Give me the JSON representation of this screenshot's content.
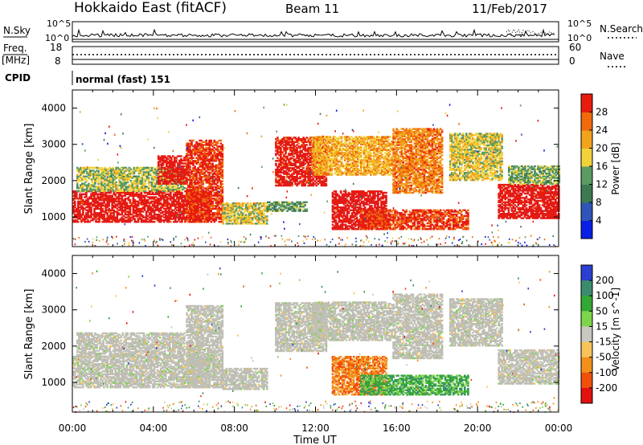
{
  "header": {
    "radar": "Hokkaido East (fitACF)",
    "beam": "Beam 11",
    "date": "11/Feb/2017"
  },
  "params": {
    "nsky_label": "N.Sky",
    "nsky_ticks": [
      "10^5",
      "10^0"
    ],
    "nsearch_label": "N.Search",
    "nsearch_ticks": [
      "10^5",
      "10^0"
    ],
    "freq_label": "Freq.",
    "freq_unit": "[MHz]",
    "freq_ticks": [
      "18",
      "8"
    ],
    "nave_label": "Nave",
    "nave_ticks": [
      "60",
      "0"
    ],
    "cpid_label": "CPID",
    "cpid_value": "normal (fast) 151"
  },
  "colors": {
    "power_scale": [
      "#0a1fe6",
      "#2f55b8",
      "#3d7a52",
      "#5a9a63",
      "#f2d23a",
      "#f2a31c",
      "#f06a0c",
      "#e81c0c",
      "#e11b1b"
    ],
    "velocity_scale": [
      "#e31010",
      "#f0500a",
      "#f2901a",
      "#f7c45a",
      "#c8c8c0",
      "#7ed44a",
      "#34a834",
      "#3b8c6e",
      "#2b3fd0"
    ],
    "ground_scatter": "#bebeb4"
  },
  "chart_data": [
    {
      "type": "heatmap",
      "name": "power",
      "ylabel": "Slant Range [km]",
      "xlabel": "Time UT",
      "x_ticks": [
        "00:00",
        "04:00",
        "08:00",
        "12:00",
        "16:00",
        "20:00",
        "00:00"
      ],
      "x_range_hours": [
        0,
        24
      ],
      "y_ticks": [
        1000,
        2000,
        3000,
        4000
      ],
      "ylim": [
        180,
        4500
      ],
      "colorbar": {
        "label": "Power [dB]",
        "ticks": [
          4,
          8,
          12,
          16,
          20,
          24,
          28
        ],
        "range": [
          0,
          32
        ]
      },
      "regions": [
        {
          "t0": 0.0,
          "t1": 6.8,
          "r0": 850,
          "r1": 1700,
          "level": 0.9
        },
        {
          "t0": 0.2,
          "t1": 5.5,
          "r0": 1700,
          "r1": 2350,
          "level": 0.45
        },
        {
          "t0": 4.2,
          "t1": 5.6,
          "r0": 1900,
          "r1": 2700,
          "level": 0.9
        },
        {
          "t0": 5.6,
          "t1": 7.4,
          "r0": 850,
          "r1": 3100,
          "level": 0.82
        },
        {
          "t0": 7.4,
          "t1": 9.6,
          "r0": 800,
          "r1": 1400,
          "level": 0.5
        },
        {
          "t0": 10.0,
          "t1": 12.5,
          "r0": 1850,
          "r1": 3200,
          "level": 0.88
        },
        {
          "t0": 11.8,
          "t1": 15.8,
          "r0": 2150,
          "r1": 3200,
          "level": 0.6
        },
        {
          "t0": 12.8,
          "t1": 15.5,
          "r0": 650,
          "r1": 1700,
          "level": 0.92
        },
        {
          "t0": 14.2,
          "t1": 19.5,
          "r0": 650,
          "r1": 1200,
          "level": 0.8
        },
        {
          "t0": 15.8,
          "t1": 18.2,
          "r0": 1650,
          "r1": 3450,
          "level": 0.68
        },
        {
          "t0": 18.6,
          "t1": 21.2,
          "r0": 2000,
          "r1": 3300,
          "level": 0.5
        },
        {
          "t0": 21.0,
          "t1": 24.0,
          "r0": 950,
          "r1": 1900,
          "level": 0.9
        },
        {
          "t0": 21.5,
          "t1": 24.0,
          "r0": 1900,
          "r1": 2400,
          "level": 0.4
        },
        {
          "t0": 9.6,
          "t1": 11.6,
          "r0": 1150,
          "r1": 1400,
          "level": 0.35
        }
      ]
    },
    {
      "type": "heatmap",
      "name": "velocity",
      "ylabel": "Slant Range [km]",
      "xlabel": "Time UT",
      "x_ticks": [
        "00:00",
        "04:00",
        "08:00",
        "12:00",
        "16:00",
        "20:00",
        "00:00"
      ],
      "x_range_hours": [
        0,
        24
      ],
      "y_ticks": [
        1000,
        2000,
        3000,
        4000
      ],
      "ylim": [
        180,
        4500
      ],
      "colorbar": {
        "label": "Velocity [m s^-1]",
        "ticks": [
          200,
          100,
          50,
          15,
          -15,
          -50,
          -100,
          -200
        ],
        "range": [
          -250,
          250
        ]
      },
      "regions": [
        {
          "t0": 0.0,
          "t1": 6.8,
          "r0": 850,
          "r1": 1700,
          "level": 0.5
        },
        {
          "t0": 0.2,
          "t1": 5.5,
          "r0": 1700,
          "r1": 2350,
          "level": 0.5
        },
        {
          "t0": 5.6,
          "t1": 7.4,
          "r0": 850,
          "r1": 3100,
          "level": 0.5
        },
        {
          "t0": 7.4,
          "t1": 9.6,
          "r0": 800,
          "r1": 1400,
          "level": 0.5
        },
        {
          "t0": 10.0,
          "t1": 12.5,
          "r0": 1850,
          "r1": 3200,
          "level": 0.5
        },
        {
          "t0": 11.8,
          "t1": 15.8,
          "r0": 2150,
          "r1": 3200,
          "level": 0.5
        },
        {
          "t0": 12.8,
          "t1": 15.5,
          "r0": 650,
          "r1": 1700,
          "level": 0.25
        },
        {
          "t0": 14.2,
          "t1": 19.5,
          "r0": 650,
          "r1": 1200,
          "level": 0.72
        },
        {
          "t0": 15.8,
          "t1": 18.2,
          "r0": 1650,
          "r1": 3450,
          "level": 0.5
        },
        {
          "t0": 18.6,
          "t1": 21.2,
          "r0": 2000,
          "r1": 3300,
          "level": 0.5
        },
        {
          "t0": 21.0,
          "t1": 24.0,
          "r0": 950,
          "r1": 1900,
          "level": 0.5
        }
      ]
    }
  ]
}
